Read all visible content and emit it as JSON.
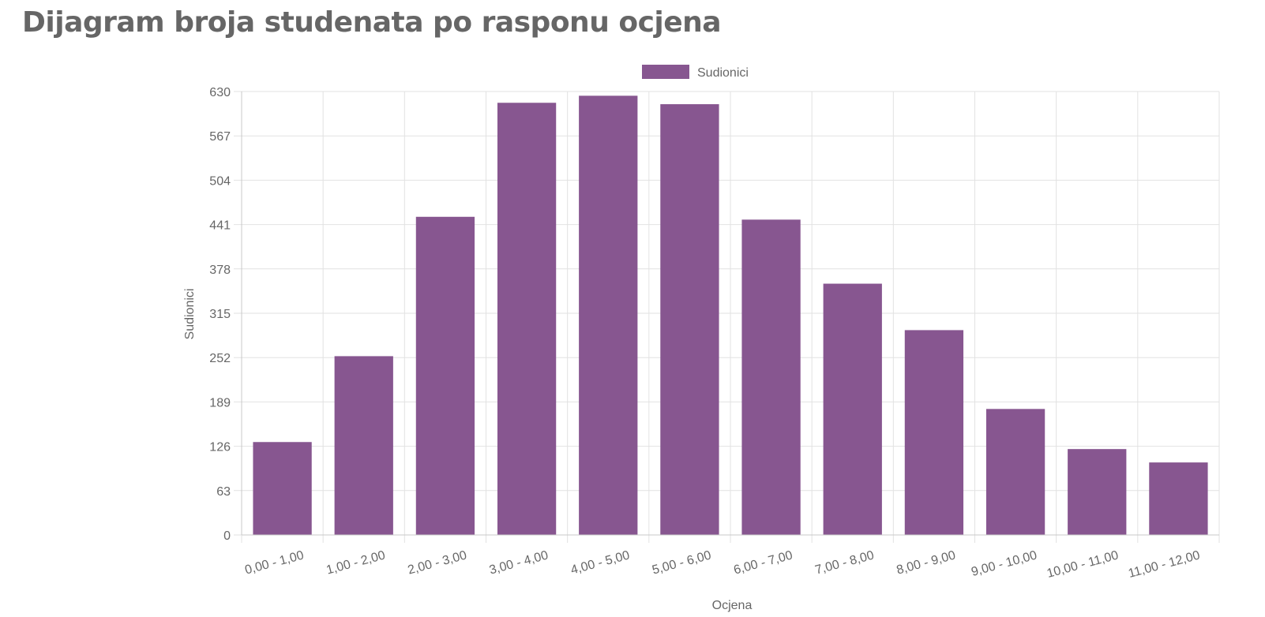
{
  "page": {
    "title": "Dijagram broja studenata po rasponu ocjena"
  },
  "chart_data": {
    "type": "bar",
    "title": "",
    "xlabel": "Ocjena",
    "ylabel": "Sudionici",
    "categories": [
      "0,00 - 1,00",
      "1,00 - 2,00",
      "2,00 - 3,00",
      "3,00 - 4,00",
      "4,00 - 5,00",
      "5,00 - 6,00",
      "6,00 - 7,00",
      "7,00 - 8,00",
      "8,00 - 9,00",
      "9,00 - 10,00",
      "10,00 - 11,00",
      "11,00 - 12,00"
    ],
    "series": [
      {
        "name": "Sudionici",
        "color": "#875690",
        "values": [
          132,
          254,
          452,
          614,
          624,
          612,
          448,
          357,
          291,
          179,
          122,
          103
        ]
      }
    ],
    "ylim": [
      0,
      630
    ],
    "yticks": [
      0,
      63,
      126,
      189,
      252,
      315,
      378,
      441,
      504,
      567,
      630
    ],
    "grid": true,
    "legend_position": "top-center"
  }
}
